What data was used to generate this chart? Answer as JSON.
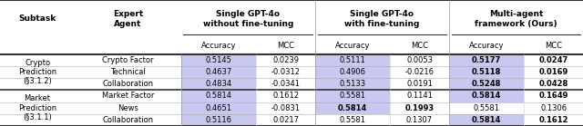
{
  "col_groups": [
    {
      "label": "Single GPT-4o\nwithout fine-tuning",
      "sub": [
        "Accuracy",
        "MCC"
      ]
    },
    {
      "label": "Single GPT-4o\nwith fine-tuning",
      "sub": [
        "Accuracy",
        "MCC"
      ]
    },
    {
      "label": "Multi-agent\nframework (Ours)",
      "sub": [
        "Accuracy",
        "MCC"
      ]
    }
  ],
  "row_groups": [
    {
      "subtask": "Crypto\nPrediction\n(§3.1.2)",
      "rows": [
        {
          "agent": "Crypto Factor",
          "vals": [
            "0.5145",
            "0.0239",
            "0.5111",
            "0.0053",
            "0.5177",
            "0.0247"
          ],
          "bold": [
            false,
            false,
            false,
            false,
            true,
            true
          ],
          "acc_highlight": [
            true,
            true,
            true
          ]
        },
        {
          "agent": "Technical",
          "vals": [
            "0.4637",
            "-0.0312",
            "0.4906",
            "-0.0216",
            "0.5118",
            "0.0169"
          ],
          "bold": [
            false,
            false,
            false,
            false,
            true,
            true
          ],
          "acc_highlight": [
            true,
            true,
            true
          ]
        },
        {
          "agent": "Collaboration",
          "vals": [
            "0.4834",
            "-0.0341",
            "0.5133",
            "0.0191",
            "0.5248",
            "0.0428"
          ],
          "bold": [
            false,
            false,
            false,
            false,
            true,
            true
          ],
          "acc_highlight": [
            true,
            true,
            true
          ]
        }
      ]
    },
    {
      "subtask": "Market\nPrediction\n(§3.1.1)",
      "rows": [
        {
          "agent": "Market Factor",
          "vals": [
            "0.5814",
            "0.1612",
            "0.5581",
            "0.1141",
            "0.5814",
            "0.1649"
          ],
          "bold": [
            false,
            false,
            false,
            false,
            true,
            true
          ],
          "acc_highlight": [
            true,
            true,
            true
          ]
        },
        {
          "agent": "News",
          "vals": [
            "0.4651",
            "-0.0831",
            "0.5814",
            "0.1993",
            "0.5581",
            "0.1306"
          ],
          "bold": [
            false,
            false,
            true,
            true,
            false,
            false
          ],
          "acc_highlight": [
            true,
            true,
            false
          ]
        },
        {
          "agent": "Collaboration",
          "vals": [
            "0.5116",
            "0.0217",
            "0.5581",
            "0.1307",
            "0.5814",
            "0.1612"
          ],
          "bold": [
            false,
            false,
            false,
            false,
            true,
            true
          ],
          "acc_highlight": [
            true,
            false,
            true
          ]
        }
      ]
    }
  ],
  "highlight_color": "#c8c8f0",
  "border_color": "#333333",
  "text_color": "#111111",
  "figsize": [
    6.4,
    1.39
  ],
  "dpi": 100
}
